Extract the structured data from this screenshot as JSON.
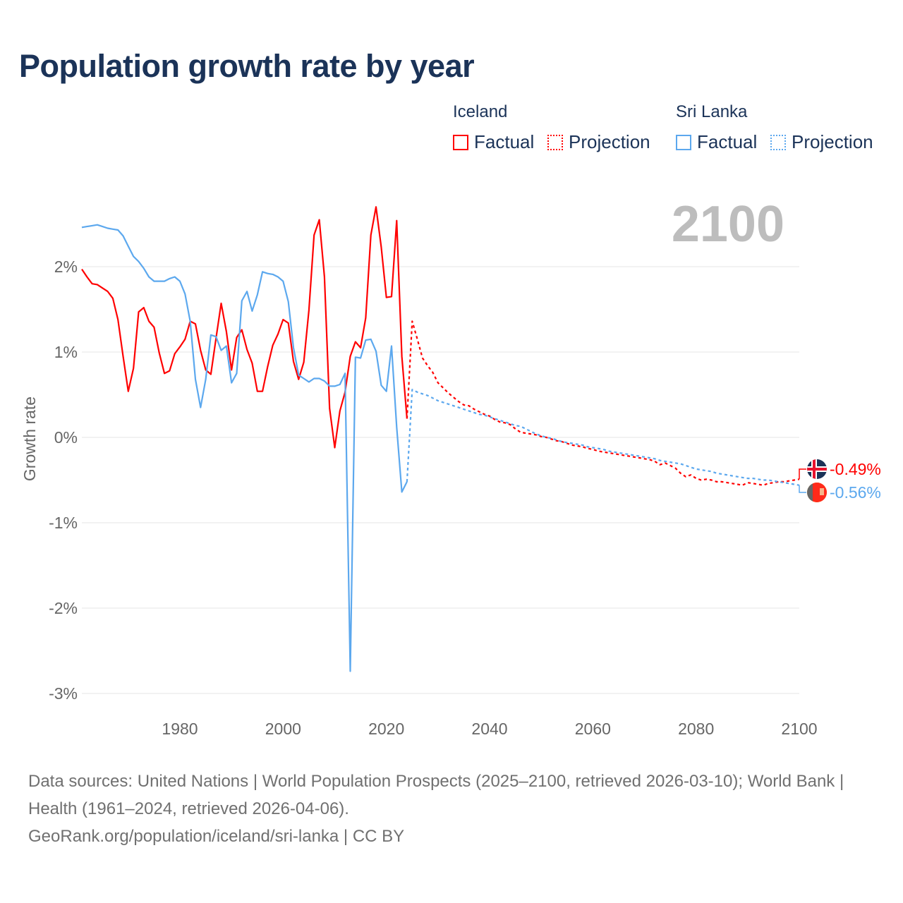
{
  "title": "Population growth rate by year",
  "legend": {
    "groups": [
      {
        "name": "Iceland",
        "factual": "Factual",
        "projection": "Projection",
        "color": "#ff0000"
      },
      {
        "name": "Sri Lanka",
        "factual": "Factual",
        "projection": "Projection",
        "color": "#5ca8ee"
      }
    ]
  },
  "year_label": "2100",
  "end_labels": {
    "iceland": "-0.49%",
    "sri_lanka": "-0.56%"
  },
  "footer": {
    "sources": "Data sources: United Nations | World Population Prospects (2025–2100, retrieved 2026-03-10); World Bank | Health (1961–2024, retrieved 2026-04-06).",
    "credit": "GeoRank.org/population/iceland/sri-lanka | CC BY"
  },
  "chart_data": {
    "type": "line",
    "title": "Population growth rate by year",
    "xlabel": "",
    "ylabel": "Growth rate",
    "xlim": [
      1961,
      2100
    ],
    "ylim": [
      -3.3,
      2.8
    ],
    "x_ticks": [
      1980,
      2000,
      2020,
      2040,
      2060,
      2080,
      2100
    ],
    "y_ticks": [
      2,
      1,
      0,
      -1,
      -2,
      -3
    ],
    "y_tick_labels": [
      "2%",
      "1%",
      "0%",
      "-1%",
      "-2%",
      "-3%"
    ],
    "grid": true,
    "legend_position": "top-right",
    "series": [
      {
        "name": "Iceland Factual",
        "color": "#ff0000",
        "dash": false,
        "x_start": 1961,
        "values": [
          1.97,
          1.88,
          1.8,
          1.79,
          1.75,
          1.71,
          1.63,
          1.38,
          0.95,
          0.54,
          0.81,
          1.47,
          1.52,
          1.36,
          1.29,
          0.99,
          0.75,
          0.78,
          0.98,
          1.06,
          1.15,
          1.36,
          1.33,
          1.02,
          0.79,
          0.74,
          1.16,
          1.57,
          1.24,
          0.79,
          1.17,
          1.26,
          1.03,
          0.87,
          0.54,
          0.54,
          0.83,
          1.08,
          1.21,
          1.38,
          1.34,
          0.89,
          0.68,
          0.88,
          1.49,
          2.37,
          2.55,
          1.88,
          0.34,
          -0.12,
          0.31,
          0.53,
          0.95,
          1.12,
          1.05,
          1.4,
          2.37,
          2.7,
          2.23,
          1.64,
          1.65,
          2.54,
          0.95,
          0.22
        ]
      },
      {
        "name": "Iceland Projection",
        "color": "#ff0000",
        "dash": true,
        "x_start": 2025,
        "values": [
          1.36,
          1.15,
          0.93,
          0.84,
          0.76,
          0.64,
          0.58,
          0.52,
          0.47,
          0.42,
          0.38,
          0.37,
          0.33,
          0.3,
          0.27,
          0.25,
          0.21,
          0.18,
          0.17,
          0.15,
          0.1,
          0.06,
          0.05,
          0.04,
          0.03,
          0.01,
          0.0,
          -0.02,
          -0.04,
          -0.05,
          -0.07,
          -0.09,
          -0.1,
          -0.11,
          -0.13,
          -0.14,
          -0.16,
          -0.17,
          -0.18,
          -0.19,
          -0.2,
          -0.21,
          -0.22,
          -0.23,
          -0.24,
          -0.25,
          -0.26,
          -0.28,
          -0.32,
          -0.3,
          -0.33,
          -0.36,
          -0.42,
          -0.46,
          -0.44,
          -0.48,
          -0.5,
          -0.49,
          -0.5,
          -0.52,
          -0.52,
          -0.53,
          -0.54,
          -0.55,
          -0.56,
          -0.53,
          -0.54,
          -0.55,
          -0.56,
          -0.54,
          -0.53,
          -0.52,
          -0.52,
          -0.51,
          -0.5,
          -0.49
        ]
      },
      {
        "name": "Sri Lanka Factual",
        "color": "#5ca8ee",
        "dash": false,
        "x_start": 1961,
        "values": [
          2.46,
          2.47,
          2.48,
          2.49,
          2.47,
          2.45,
          2.44,
          2.43,
          2.36,
          2.24,
          2.12,
          2.06,
          1.98,
          1.88,
          1.83,
          1.83,
          1.83,
          1.86,
          1.88,
          1.83,
          1.68,
          1.36,
          0.68,
          0.35,
          0.68,
          1.2,
          1.18,
          1.02,
          1.07,
          0.64,
          0.75,
          1.6,
          1.71,
          1.48,
          1.67,
          1.94,
          1.92,
          1.91,
          1.88,
          1.83,
          1.59,
          1.05,
          0.73,
          0.69,
          0.65,
          0.69,
          0.69,
          0.66,
          0.6,
          0.6,
          0.62,
          0.75,
          -2.74,
          0.94,
          0.93,
          1.14,
          1.15,
          1.01,
          0.61,
          0.54,
          1.07,
          0.12,
          -0.64,
          -0.52
        ]
      },
      {
        "name": "Sri Lanka Projection",
        "color": "#5ca8ee",
        "dash": true,
        "x_start": 2025,
        "values": [
          0.56,
          0.53,
          0.51,
          0.49,
          0.46,
          0.43,
          0.41,
          0.39,
          0.37,
          0.35,
          0.33,
          0.31,
          0.29,
          0.27,
          0.26,
          0.24,
          0.22,
          0.2,
          0.18,
          0.16,
          0.14,
          0.13,
          0.1,
          0.07,
          0.04,
          0.02,
          0.0,
          -0.01,
          -0.03,
          -0.05,
          -0.06,
          -0.07,
          -0.08,
          -0.09,
          -0.11,
          -0.12,
          -0.13,
          -0.14,
          -0.16,
          -0.17,
          -0.18,
          -0.19,
          -0.2,
          -0.21,
          -0.22,
          -0.23,
          -0.24,
          -0.25,
          -0.27,
          -0.28,
          -0.29,
          -0.3,
          -0.31,
          -0.33,
          -0.35,
          -0.37,
          -0.38,
          -0.39,
          -0.4,
          -0.42,
          -0.43,
          -0.44,
          -0.45,
          -0.46,
          -0.47,
          -0.48,
          -0.48,
          -0.49,
          -0.5,
          -0.5,
          -0.51,
          -0.52,
          -0.53,
          -0.54,
          -0.55,
          -0.56
        ]
      }
    ]
  }
}
